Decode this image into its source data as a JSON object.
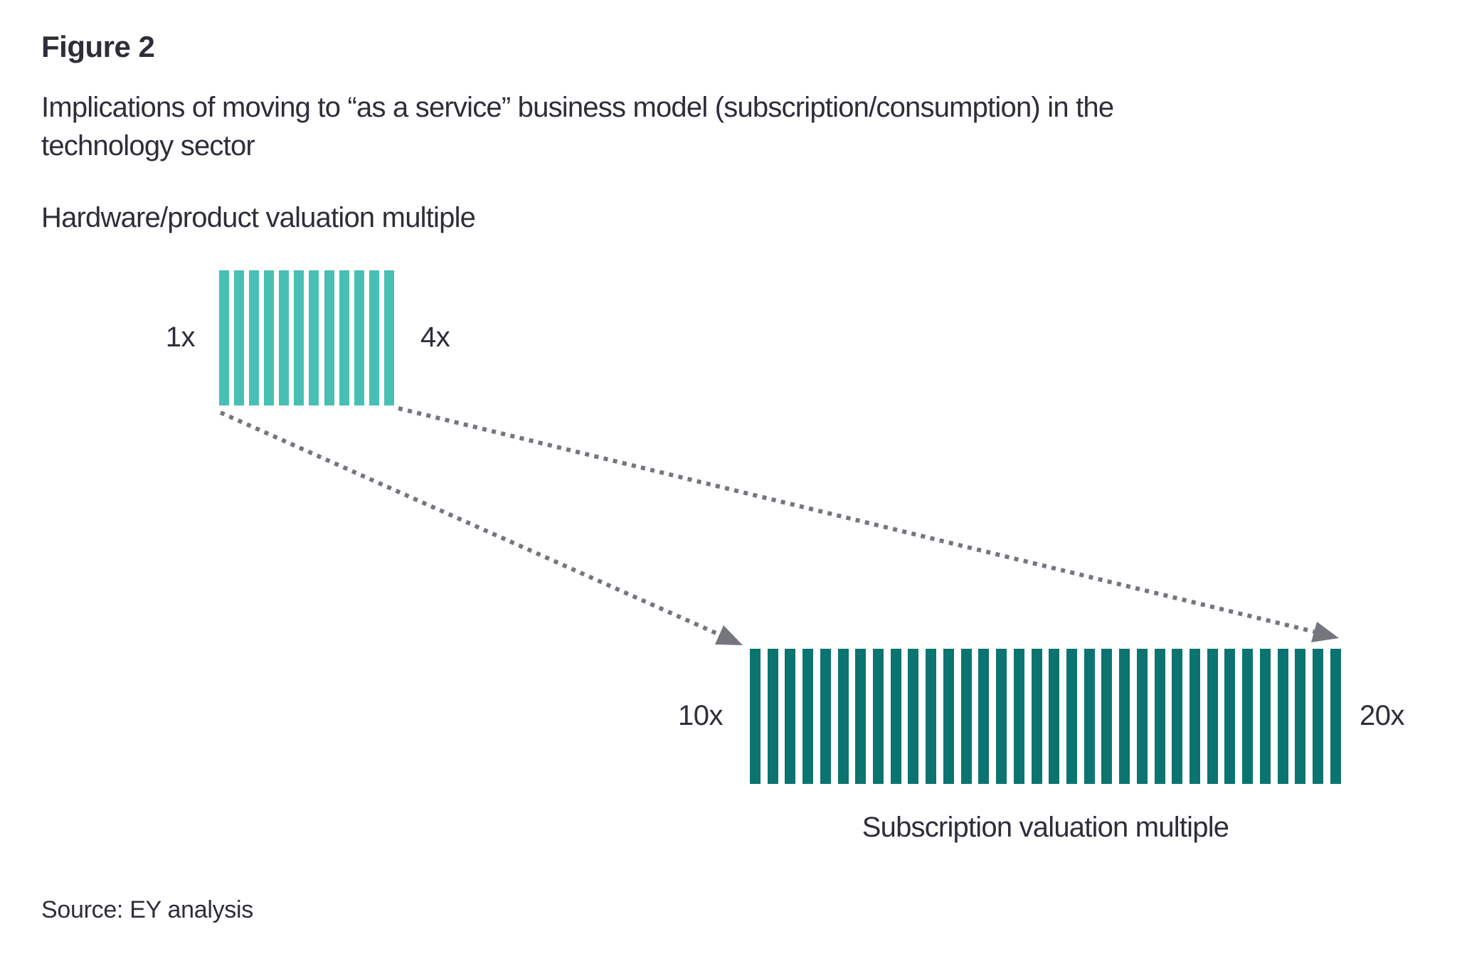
{
  "figure": {
    "label": "Figure 2",
    "title_lines": [
      "Implications of moving to “as a service” business model (subscription/consumption) in the",
      "technology sector"
    ]
  },
  "hardware_chart": {
    "axis_label": "Hardware/product valuation multiple",
    "min_label": "1x",
    "max_label": "4x",
    "stripe_count": 12,
    "color": "#48BFB4"
  },
  "subscription_chart": {
    "axis_label": "Subscription valuation multiple",
    "min_label": "10x",
    "max_label": "20x",
    "stripe_count": 34,
    "color": "#0C7470"
  },
  "arrows": {
    "color": "#75757E"
  },
  "source_note": "Source: EY analysis",
  "chart_data": {
    "type": "bar",
    "title": "Implications of moving to “as a service” business model (subscription/consumption) in the technology sector",
    "series": [
      {
        "name": "Hardware/product valuation multiple",
        "range_low": 1,
        "range_high": 4,
        "unit": "x",
        "low_label": "1x",
        "high_label": "4x"
      },
      {
        "name": "Subscription valuation multiple",
        "range_low": 10,
        "range_high": 20,
        "unit": "x",
        "low_label": "10x",
        "high_label": "20x"
      }
    ],
    "legend_position": "none",
    "grid": false,
    "source": "Source: EY analysis"
  }
}
